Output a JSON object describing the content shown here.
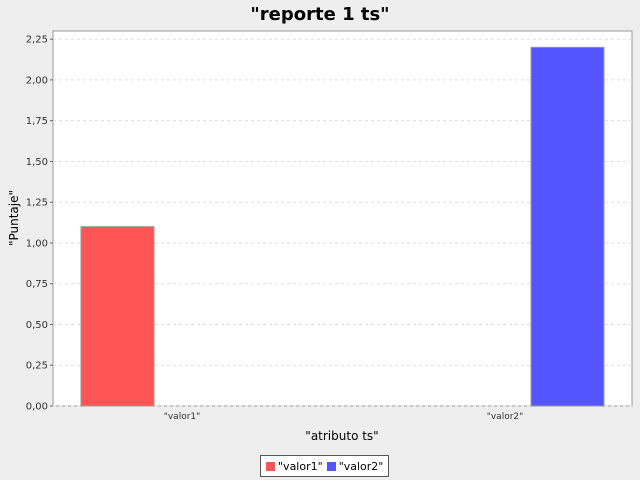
{
  "chart_data": {
    "type": "bar",
    "title": "\"reporte  1 ts\"",
    "xlabel": "\"atributo ts\"",
    "ylabel": "\"Puntaje\"",
    "categories": [
      "\"valor1\"",
      "\"valor2\""
    ],
    "series": [
      {
        "name": "\"valor1\"",
        "color": "#ff5555",
        "values": [
          1.1,
          null
        ]
      },
      {
        "name": "\"valor2\"",
        "color": "#5555ff",
        "values": [
          null,
          2.2
        ]
      }
    ],
    "ylim": [
      0,
      2.3
    ],
    "yticks": [
      "0,00",
      "0,25",
      "0,50",
      "0,75",
      "1,00",
      "1,25",
      "1,50",
      "1,75",
      "2,00",
      "2,25"
    ],
    "ytick_values": [
      0,
      0.25,
      0.5,
      0.75,
      1.0,
      1.25,
      1.5,
      1.75,
      2.0,
      2.25
    ],
    "grid": true,
    "legend_position": "bottom-center"
  }
}
